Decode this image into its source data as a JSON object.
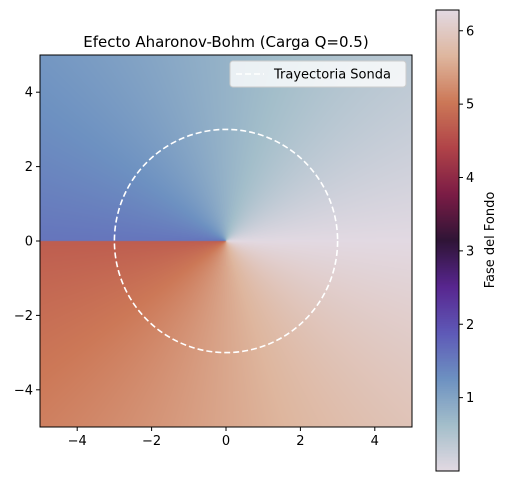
{
  "chart_data": {
    "type": "heatmap",
    "title": "Efecto Aharonov-Bohm (Carga Q=0.5)",
    "xlabel": "",
    "ylabel": "",
    "xlim": [
      -5,
      5
    ],
    "ylim": [
      -5,
      5
    ],
    "x_ticks": [
      -4,
      -2,
      0,
      2,
      4
    ],
    "y_ticks": [
      -4,
      -2,
      0,
      2,
      4
    ],
    "x_tick_labels": [
      "−4",
      "−2",
      "0",
      "2",
      "4"
    ],
    "y_tick_labels": [
      "−4",
      "−2",
      "0",
      "2",
      "4"
    ],
    "grid": false,
    "colormap": "twilight",
    "field": "phase = Q * angle(x + i*y), mapped to [0, 2π)",
    "charge_Q": 0.5,
    "series": [
      {
        "name": "Trayectoria Sonda",
        "type": "circle",
        "center": [
          0,
          0
        ],
        "radius": 3,
        "color": "#ffffff",
        "style": "dashed"
      }
    ],
    "legend": {
      "placement": "top-right",
      "entries": [
        "Trayectoria Sonda"
      ]
    },
    "colorbar": {
      "label": "Fase del Fondo",
      "range": [
        0,
        6.283
      ],
      "ticks": [
        1,
        2,
        3,
        4,
        5,
        6
      ],
      "tick_labels": [
        "1",
        "2",
        "3",
        "4",
        "5",
        "6"
      ]
    }
  }
}
